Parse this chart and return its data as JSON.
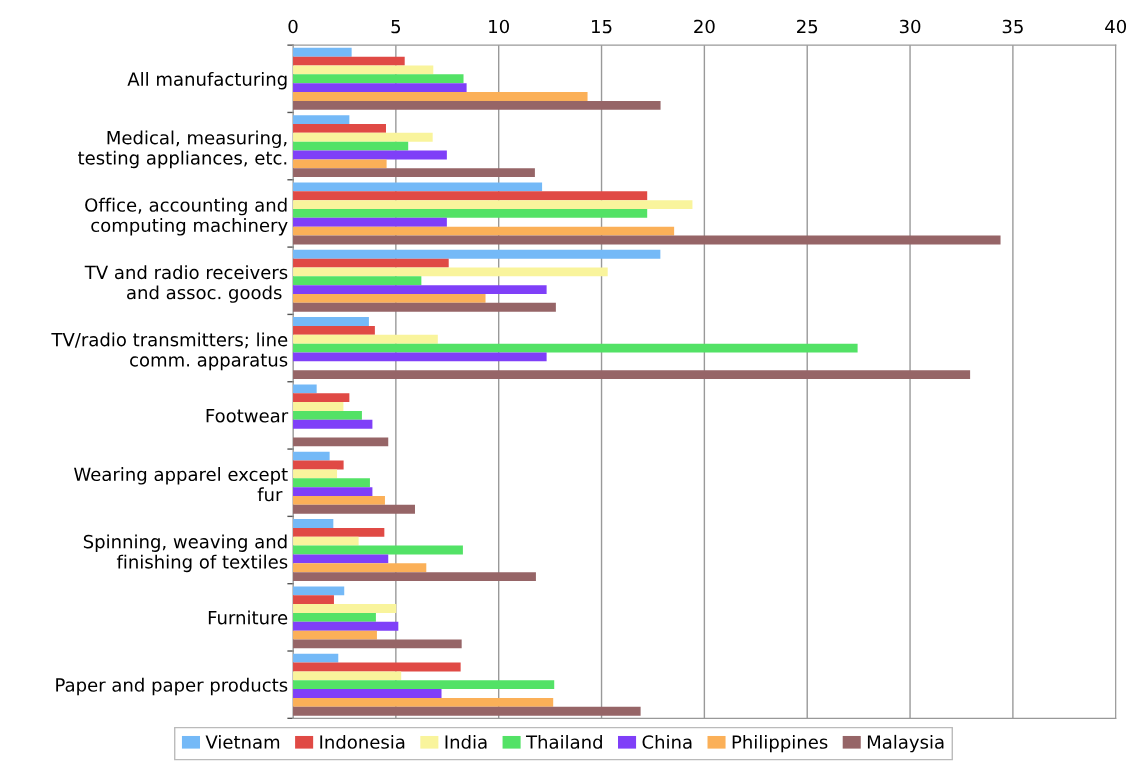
{
  "chart_data": {
    "type": "bar",
    "orientation": "horizontal",
    "categories": [
      "All manufacturing",
      "Medical, measuring,\ntesting appliances, etc.",
      "Office, accounting and\ncomputing machinery",
      "TV and radio receivers\nand assoc. goods ",
      "TV/radio transmitters; line\ncomm. apparatus",
      "Footwear",
      "Wearing apparel except\nfur ",
      "Spinning, weaving and\nfinishing of textiles",
      "Furniture",
      "Paper and paper products"
    ],
    "series": [
      {
        "name": "Vietnam",
        "color": "#74b9f7",
        "values": [
          2.85,
          2.74,
          12.11,
          17.86,
          3.69,
          1.15,
          1.78,
          1.96,
          2.49,
          2.2
        ]
      },
      {
        "name": "Indonesia",
        "color": "#e04a45",
        "values": [
          5.43,
          4.52,
          17.22,
          7.57,
          3.98,
          2.74,
          2.46,
          4.44,
          1.99,
          8.15
        ]
      },
      {
        "name": "India",
        "color": "#f9f49c",
        "values": [
          6.82,
          6.79,
          19.42,
          15.3,
          7.04,
          2.45,
          2.14,
          3.19,
          5.02,
          5.26
        ]
      },
      {
        "name": "Thailand",
        "color": "#53e266",
        "values": [
          8.29,
          5.6,
          17.22,
          6.24,
          27.45,
          3.35,
          3.74,
          8.26,
          4.03,
          12.7
        ]
      },
      {
        "name": "China",
        "color": "#7f3ff8",
        "values": [
          8.44,
          7.48,
          7.48,
          12.33,
          12.33,
          3.86,
          3.86,
          4.63,
          5.12,
          7.22
        ]
      },
      {
        "name": "Philippines",
        "color": "#fbb058",
        "values": [
          14.32,
          4.55,
          18.53,
          9.36,
          null,
          null,
          4.47,
          6.48,
          4.08,
          12.65
        ]
      },
      {
        "name": "Malaysia",
        "color": "#966567",
        "values": [
          17.87,
          11.76,
          34.4,
          12.78,
          32.92,
          4.63,
          5.93,
          11.81,
          8.2,
          16.9
        ]
      }
    ],
    "xlim": [
      0,
      40
    ],
    "xticks": [
      0,
      5,
      10,
      15,
      20,
      25,
      30,
      35,
      40
    ],
    "grid": "x",
    "legend": "bottom"
  }
}
